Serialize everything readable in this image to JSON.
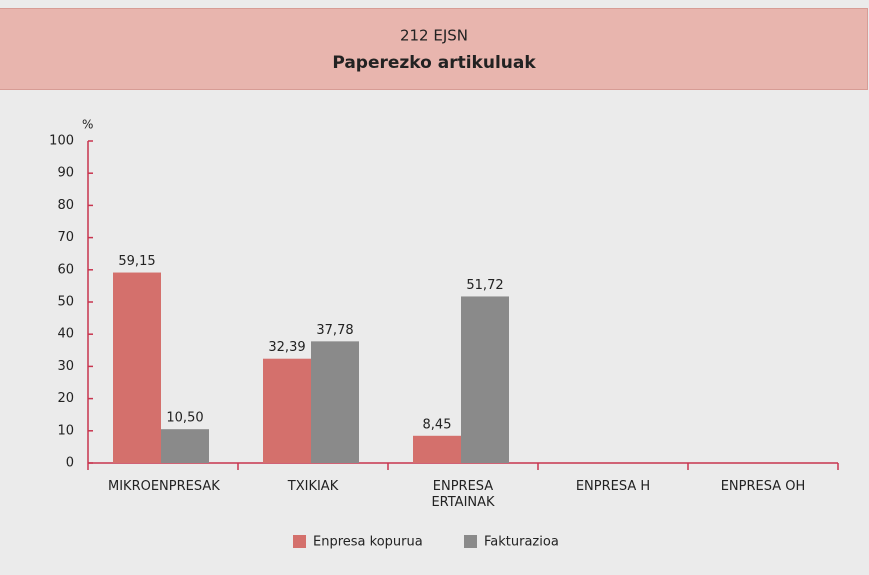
{
  "chart_data": {
    "type": "bar",
    "title": "212 EJSN",
    "subtitle": "Paperezko artikuluak",
    "y_label": "%",
    "categories": [
      "MIKROENPRESAK",
      "TXIKIAK",
      "ENPRESA ERTAINAK",
      "ENPRESA H",
      "ENPRESA OH"
    ],
    "series": [
      {
        "name": "Enpresa kopurua",
        "color": "#d4706c",
        "values": [
          59.15,
          32.39,
          8.45,
          null,
          null
        ],
        "value_labels": [
          "59,15",
          "32,39",
          "8,45",
          null,
          null
        ]
      },
      {
        "name": "Fakturazioa",
        "color": "#8a8a8a",
        "values": [
          10.5,
          37.78,
          51.72,
          null,
          null
        ],
        "value_labels": [
          "10,50",
          "37,78",
          "51,72",
          null,
          null
        ]
      }
    ],
    "ylim": [
      0,
      100
    ],
    "yticks": [
      0,
      10,
      20,
      30,
      40,
      50,
      60,
      70,
      80,
      90,
      100
    ],
    "axis_color": "#c8344e",
    "legend": "bottom"
  }
}
